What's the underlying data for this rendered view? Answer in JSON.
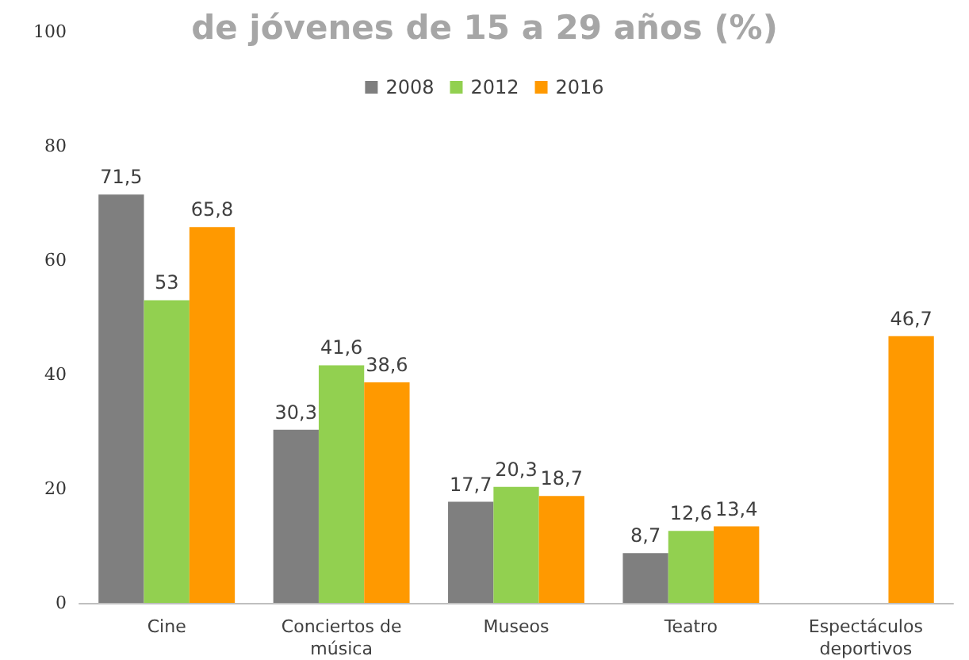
{
  "chart_data": {
    "type": "bar",
    "title": "de jóvenes de 15 a 29 años (%)",
    "categories": [
      "Cine",
      "Conciertos de\nmúsica",
      "Museos",
      "Teatro",
      "Espectáculos\ndeportivos"
    ],
    "series": [
      {
        "name": "2008",
        "color": "#7f7f7f",
        "values": [
          71.5,
          30.3,
          17.7,
          8.7,
          null
        ],
        "value_labels": [
          "71,5",
          "30,3",
          "17,7",
          "8,7",
          null
        ]
      },
      {
        "name": "2012",
        "color": "#92d050",
        "values": [
          53,
          41.6,
          20.3,
          12.6,
          null
        ],
        "value_labels": [
          "53",
          "41,6",
          "20,3",
          "12,6",
          null
        ]
      },
      {
        "name": "2016",
        "color": "#ff9900",
        "values": [
          65.8,
          38.6,
          18.7,
          13.4,
          46.7
        ],
        "value_labels": [
          "65,8",
          "38,6",
          "18,7",
          "13,4",
          "46,7"
        ]
      }
    ],
    "ylim": [
      0,
      100
    ],
    "yticks": [
      0,
      20,
      40,
      60,
      80,
      100
    ],
    "grid": false,
    "legend": "top"
  }
}
